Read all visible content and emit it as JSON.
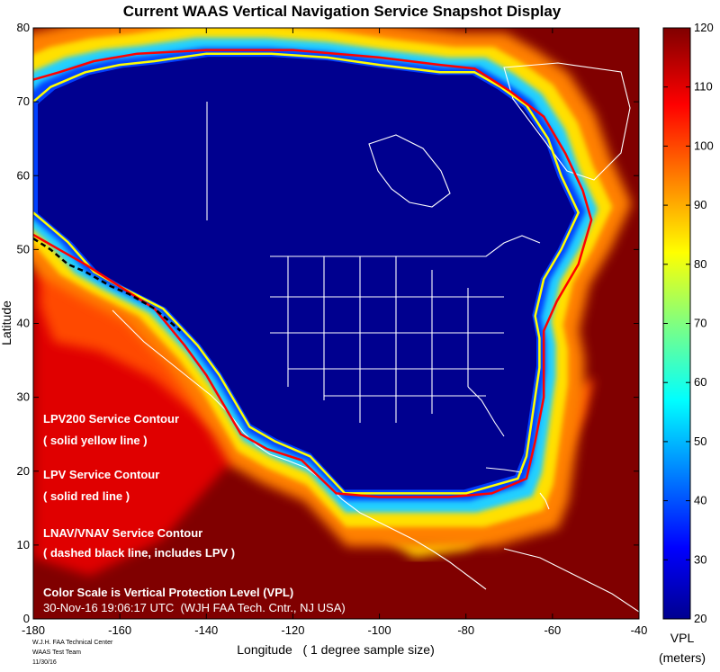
{
  "chart_data": {
    "type": "heatmap",
    "title": "Current WAAS Vertical Navigation Service Snapshot Display",
    "xlabel": "Longitude   ( 1 degree sample size)",
    "ylabel": "Latitude",
    "xlim": [
      -180,
      -40
    ],
    "ylim": [
      0,
      80
    ],
    "x_ticks": [
      -180,
      -160,
      -140,
      -120,
      -100,
      -80,
      -60,
      -40
    ],
    "y_ticks": [
      0,
      10,
      20,
      30,
      40,
      50,
      60,
      70,
      80
    ],
    "colorbar": {
      "label_line1": "VPL",
      "label_line2": "(meters)",
      "min": 20,
      "max": 120,
      "ticks": [
        20,
        30,
        40,
        50,
        60,
        70,
        80,
        90,
        100,
        110,
        120
      ],
      "colormap": "jet"
    },
    "background_vpl": 120,
    "core_region_vpl": 20,
    "contours": [
      {
        "name": "LPV200 Service Contour",
        "style": "solid yellow line",
        "color": "#ffff00",
        "points": [
          [
            -180,
            70
          ],
          [
            -176,
            72
          ],
          [
            -168,
            74
          ],
          [
            -160,
            75
          ],
          [
            -152,
            75.5
          ],
          [
            -140,
            76.5
          ],
          [
            -125,
            76.5
          ],
          [
            -112,
            76
          ],
          [
            -100,
            75
          ],
          [
            -86,
            74
          ],
          [
            -78,
            74
          ],
          [
            -72,
            72
          ],
          [
            -66,
            69.5
          ],
          [
            -61,
            65
          ],
          [
            -58,
            60
          ],
          [
            -54,
            55
          ],
          [
            -58,
            50
          ],
          [
            -62,
            46
          ],
          [
            -64,
            41
          ],
          [
            -63,
            38
          ],
          [
            -63,
            34
          ],
          [
            -64,
            30
          ],
          [
            -65,
            26
          ],
          [
            -66,
            22
          ],
          [
            -68,
            19
          ],
          [
            -80,
            17
          ],
          [
            -92,
            17
          ],
          [
            -108,
            17
          ],
          [
            -116,
            22
          ],
          [
            -124,
            24
          ],
          [
            -130,
            26
          ],
          [
            -137,
            33
          ],
          [
            -142,
            37
          ],
          [
            -150,
            42
          ],
          [
            -160,
            45
          ],
          [
            -166,
            47
          ],
          [
            -172,
            51
          ],
          [
            -176,
            53
          ],
          [
            -180,
            55
          ]
        ]
      },
      {
        "name": "LPV Service Contour",
        "style": "solid red line",
        "color": "#ff0000",
        "points": [
          [
            -180,
            73
          ],
          [
            -174,
            74
          ],
          [
            -166,
            75.5
          ],
          [
            -156,
            76.5
          ],
          [
            -140,
            77
          ],
          [
            -120,
            77
          ],
          [
            -100,
            76
          ],
          [
            -86,
            75
          ],
          [
            -78,
            74.5
          ],
          [
            -70,
            71.5
          ],
          [
            -62,
            68
          ],
          [
            -57,
            63
          ],
          [
            -53,
            58
          ],
          [
            -51,
            54
          ],
          [
            -54,
            48
          ],
          [
            -59,
            43
          ],
          [
            -62,
            39
          ],
          [
            -62,
            34
          ],
          [
            -62,
            30
          ],
          [
            -64,
            24
          ],
          [
            -66,
            19
          ],
          [
            -74,
            17
          ],
          [
            -84,
            16.5
          ],
          [
            -100,
            16.5
          ],
          [
            -110,
            17
          ],
          [
            -118,
            21.5
          ],
          [
            -126,
            23
          ],
          [
            -132,
            25
          ],
          [
            -140,
            33
          ],
          [
            -145,
            37
          ],
          [
            -152,
            42
          ],
          [
            -160,
            45
          ],
          [
            -168,
            48
          ],
          [
            -174,
            50
          ],
          [
            -180,
            52
          ]
        ]
      },
      {
        "name": "LNAV/VNAV Service Contour",
        "style": "dashed black line, includes LPV",
        "color": "#000000",
        "dashed": true,
        "points": [
          [
            -180,
            51.5
          ],
          [
            -176,
            50
          ],
          [
            -172,
            48
          ],
          [
            -168,
            47
          ],
          [
            -162,
            45
          ],
          [
            -158,
            44
          ],
          [
            -152,
            42
          ],
          [
            -146,
            39
          ]
        ]
      }
    ],
    "annotations": {
      "lpv200_label": "LPV200 Service Contour",
      "lpv200_style": "( solid yellow line )",
      "lpv_label": "LPV Service Contour",
      "lpv_style": "( solid red line )",
      "lnav_label": "LNAV/VNAV Service Contour",
      "lnav_style": "( dashed black line, includes LPV )",
      "color_scale_note": "Color Scale is Vertical Protection Level (VPL)",
      "timestamp": "30-Nov-16 19:06:17 UTC  (WJH FAA Tech. Cntr., NJ USA)"
    }
  },
  "footer": {
    "line1": "W.J.H. FAA Technical Center",
    "line2": "WAAS Test Team",
    "line3": "11/30/16"
  },
  "colors": {
    "core": "#00008f",
    "deep_red": "#800000",
    "red": "#e00000",
    "orange": "#ff6000",
    "yellow": "#ffd000",
    "cyan": "#20d0ff",
    "blue": "#0040ff",
    "outline": "#ffffff"
  }
}
